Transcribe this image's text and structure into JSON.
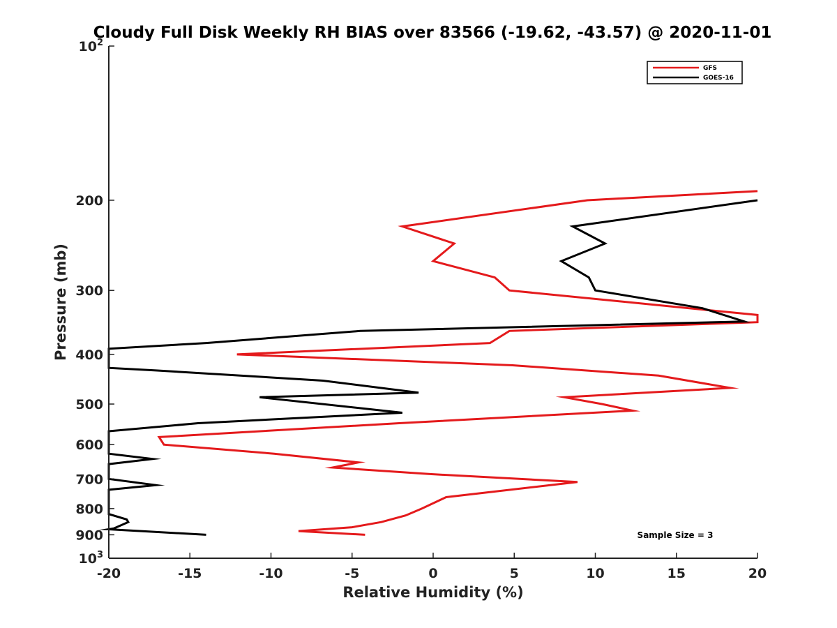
{
  "chart_data": {
    "type": "line",
    "title": "Cloudy Full Disk Weekly RH BIAS over 83566 (-19.62, -43.57) @ 2020-11-01",
    "xlabel": "Relative Humidity (%)",
    "ylabel": "Pressure (mb)",
    "xlim": [
      -20,
      20
    ],
    "ylim": [
      100,
      1000
    ],
    "y_scale": "log",
    "y_reversed": true,
    "x_ticks": [
      "-20",
      "-15",
      "-10",
      "-5",
      "0",
      "5",
      "10",
      "15",
      "20"
    ],
    "y_ticks": [
      {
        "value": 100,
        "base": "10",
        "exp": "2"
      },
      {
        "value": 200,
        "base": "200",
        "exp": ""
      },
      {
        "value": 300,
        "base": "300",
        "exp": ""
      },
      {
        "value": 400,
        "base": "400",
        "exp": ""
      },
      {
        "value": 500,
        "base": "500",
        "exp": ""
      },
      {
        "value": 600,
        "base": "600",
        "exp": ""
      },
      {
        "value": 700,
        "base": "700",
        "exp": ""
      },
      {
        "value": 800,
        "base": "800",
        "exp": ""
      },
      {
        "value": 900,
        "base": "900",
        "exp": ""
      },
      {
        "value": 1000,
        "base": "10",
        "exp": "3"
      }
    ],
    "legend_position": "top-right",
    "annotation": "Sample Size = 3",
    "series": [
      {
        "name": "GFS",
        "color": "#e41a1c",
        "points": [
          [
            20.0,
            192
          ],
          [
            9.5,
            200
          ],
          [
            -1.9,
            225
          ],
          [
            1.3,
            243
          ],
          [
            0.0,
            263
          ],
          [
            3.8,
            283
          ],
          [
            4.7,
            300
          ],
          [
            20.0,
            335
          ],
          [
            20.0,
            346
          ],
          [
            4.7,
            360
          ],
          [
            3.5,
            380
          ],
          [
            -12.1,
            400
          ],
          [
            4.9,
            420
          ],
          [
            13.9,
            440
          ],
          [
            18.3,
            465
          ],
          [
            8.1,
            485
          ],
          [
            10.4,
            500
          ],
          [
            12.3,
            515
          ],
          [
            -2.1,
            545
          ],
          [
            -16.9,
            580
          ],
          [
            -16.6,
            600
          ],
          [
            -9.8,
            625
          ],
          [
            -4.6,
            650
          ],
          [
            -6.2,
            665
          ],
          [
            -0.2,
            685
          ],
          [
            8.9,
            710
          ],
          [
            0.8,
            760
          ],
          [
            -0.7,
            800
          ],
          [
            -1.7,
            825
          ],
          [
            -3.2,
            850
          ],
          [
            -5.0,
            870
          ],
          [
            -8.3,
            885
          ],
          [
            -4.2,
            900
          ]
        ]
      },
      {
        "name": "GOES-16",
        "color": "#000000",
        "points": [
          [
            20.0,
            200
          ],
          [
            8.6,
            225
          ],
          [
            10.6,
            243
          ],
          [
            7.9,
            263
          ],
          [
            9.6,
            283
          ],
          [
            10.0,
            300
          ],
          [
            16.6,
            325
          ],
          [
            19.2,
            345
          ],
          [
            -4.5,
            360
          ],
          [
            -14.0,
            380
          ],
          [
            -20.0,
            390
          ],
          [
            -20.0,
            425
          ],
          [
            -17.0,
            430
          ],
          [
            -6.8,
            450
          ],
          [
            -0.9,
            475
          ],
          [
            -10.7,
            485
          ],
          [
            -1.9,
            520
          ],
          [
            -14.5,
            545
          ],
          [
            -20.0,
            565
          ],
          [
            -20.0,
            625
          ],
          [
            -17.3,
            640
          ],
          [
            -20.0,
            655
          ],
          [
            -20.0,
            700
          ],
          [
            -17.1,
            720
          ],
          [
            -20.0,
            735
          ],
          [
            -20.0,
            820
          ],
          [
            -18.9,
            840
          ],
          [
            -18.8,
            850
          ],
          [
            -19.7,
            875
          ],
          [
            -20.0,
            878
          ],
          [
            -14.0,
            900
          ]
        ]
      }
    ]
  }
}
